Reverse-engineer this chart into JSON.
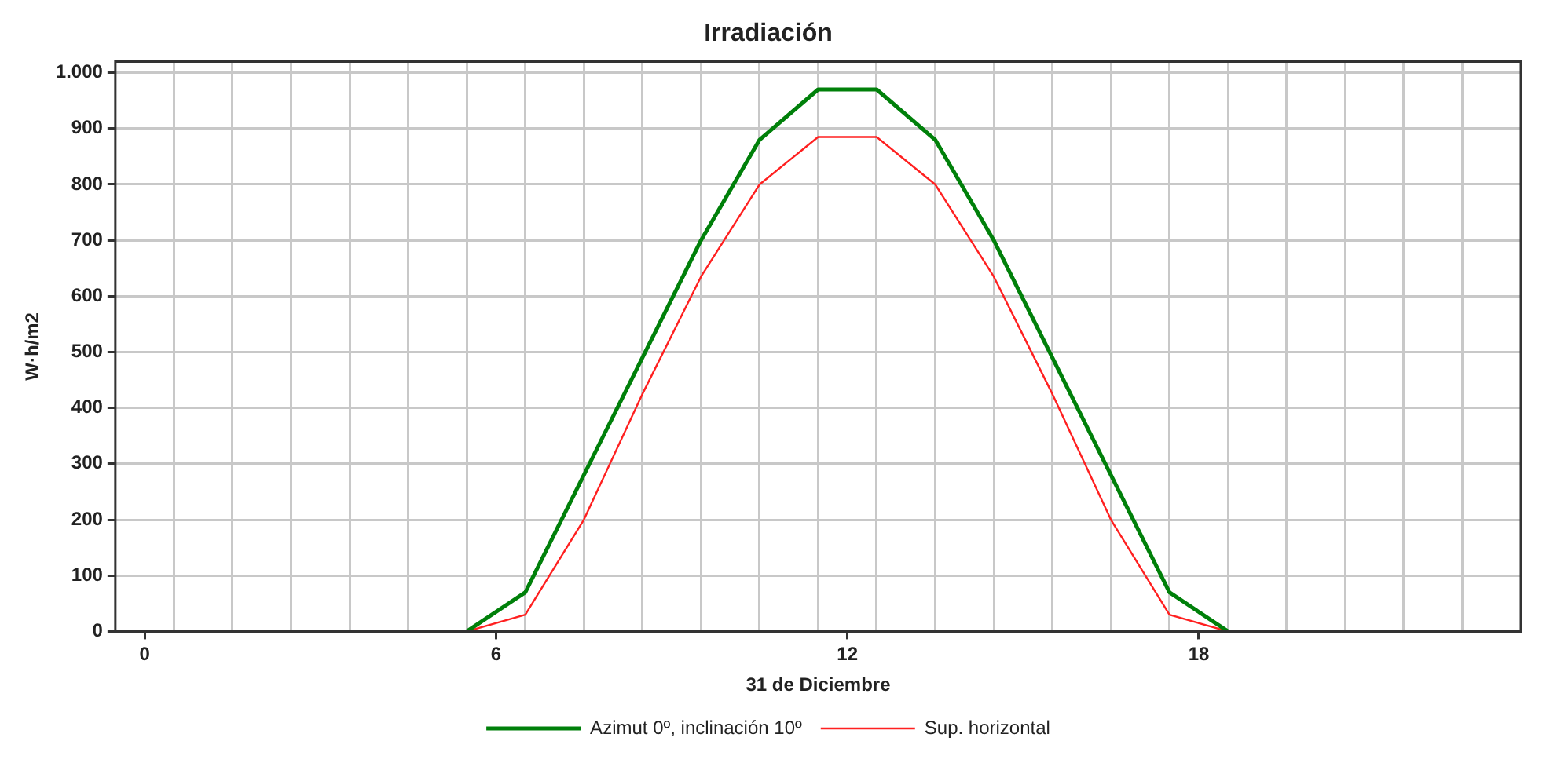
{
  "chart_data": {
    "type": "line",
    "title": "Irradiación",
    "xlabel": "31 de Diciembre",
    "ylabel": "W·h/m2",
    "x": [
      5.5,
      6.5,
      7.5,
      8.5,
      9.5,
      10.5,
      11.5,
      12.5,
      13.5,
      14.5,
      15.5,
      16.5,
      17.5,
      18.5
    ],
    "series": [
      {
        "name": "Azimut 0º, inclinación 10º",
        "color": "#00800a",
        "values": [
          0,
          70,
          280,
          490,
          700,
          880,
          970,
          970,
          880,
          700,
          490,
          280,
          70,
          0
        ]
      },
      {
        "name": "Sup. horizontal",
        "color": "#ff2020",
        "values": [
          0,
          30,
          200,
          425,
          635,
          800,
          885,
          885,
          800,
          635,
          425,
          200,
          30,
          0
        ]
      }
    ],
    "xlim": [
      -0.5,
      23.5
    ],
    "xticks": [
      0,
      6,
      12,
      18,
      {
        "value": 0.5,
        "label": null
      },
      {
        "value": 1.5,
        "label": null
      },
      {
        "value": 2.5,
        "label": null
      },
      {
        "value": 3.5,
        "label": null
      },
      {
        "value": 4.5,
        "label": null
      },
      {
        "value": 5.5,
        "label": null
      },
      {
        "value": 6.5,
        "label": null
      },
      {
        "value": 7.5,
        "label": null
      },
      {
        "value": 8.5,
        "label": null
      },
      {
        "value": 9.5,
        "label": null
      },
      {
        "value": 10.5,
        "label": null
      },
      {
        "value": 11.5,
        "label": null
      },
      {
        "value": 12.5,
        "label": null
      },
      {
        "value": 13.5,
        "label": null
      },
      {
        "value": 14.5,
        "label": null
      },
      {
        "value": 15.5,
        "label": null
      },
      {
        "value": 16.5,
        "label": null
      },
      {
        "value": 17.5,
        "label": null
      },
      {
        "value": 18.5,
        "label": null
      },
      {
        "value": 19.5,
        "label": null
      },
      {
        "value": 20.5,
        "label": null
      },
      {
        "value": 21.5,
        "label": null
      },
      {
        "value": 22.5,
        "label": null
      }
    ],
    "ylim": [
      0,
      1020
    ],
    "yticks": [
      0,
      100,
      200,
      300,
      400,
      500,
      600,
      700,
      800,
      900,
      {
        "value": 1000,
        "label": "1.000"
      }
    ],
    "grid": true,
    "legend": "bottom",
    "marker": "none",
    "line_style": "solid"
  }
}
